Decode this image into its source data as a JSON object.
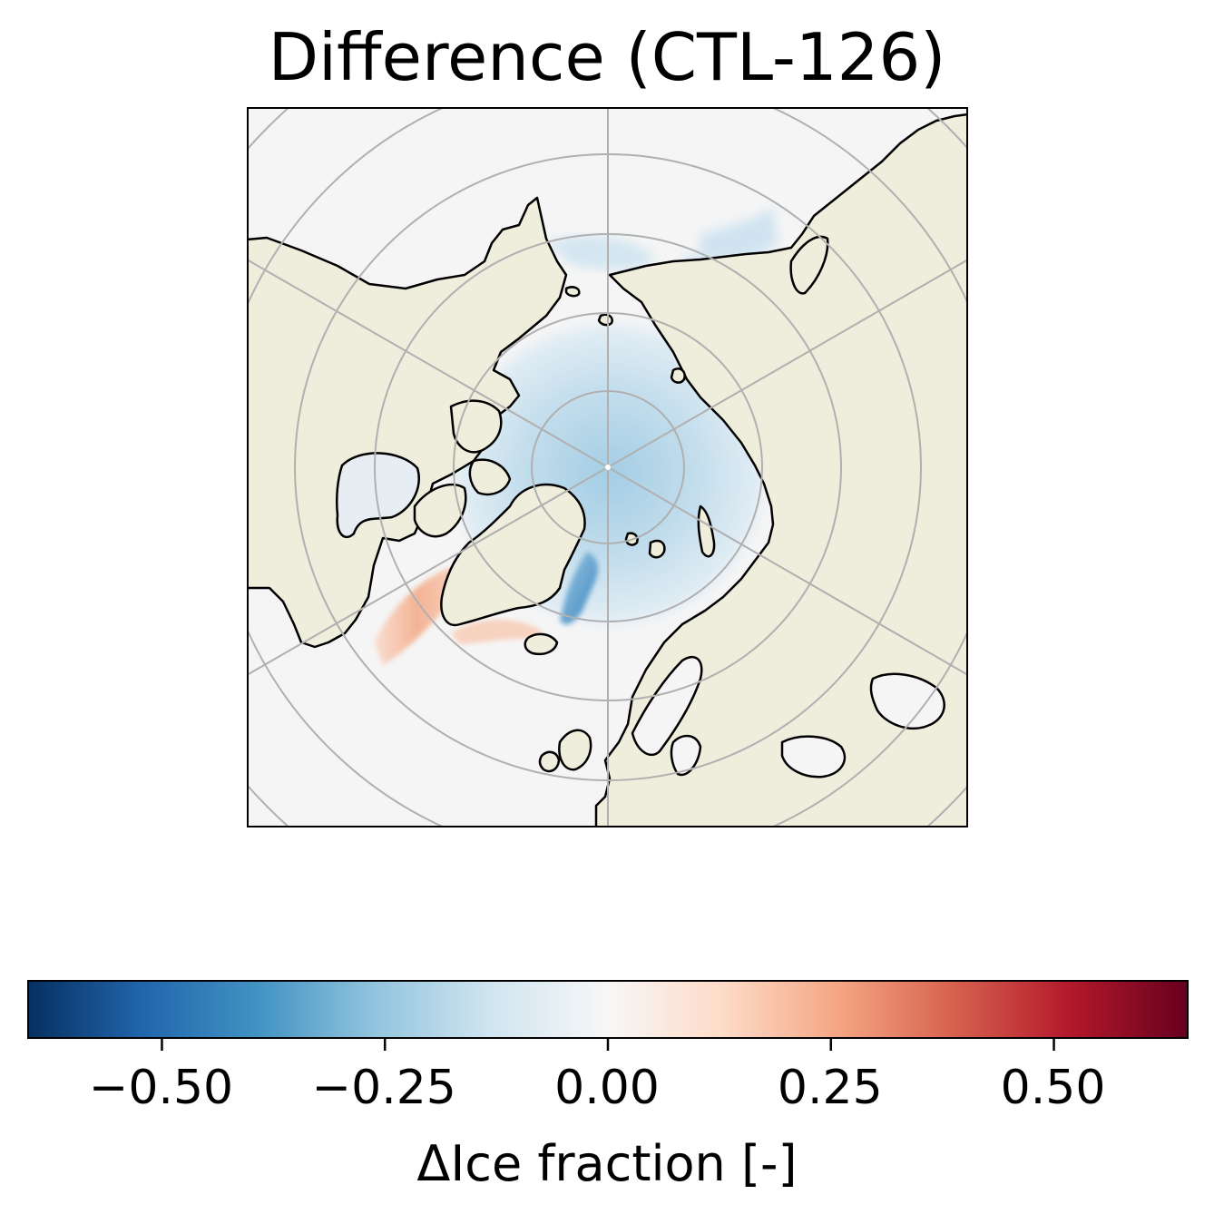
{
  "title": "Difference (CTL-126)",
  "map": {
    "projection": "north-polar-stereographic",
    "colors": {
      "ocean": "#f5f5f5",
      "land": "#efeddb",
      "coast": "#000000",
      "grid": "#b0b0b0"
    },
    "features": [
      "central-arctic-decrease",
      "east-greenland-strong-decrease",
      "bering-strait-decrease",
      "hudson-bay-decrease",
      "labrador-sea-increase",
      "south-greenland-increase"
    ]
  },
  "colorbar": {
    "colormap": "RdBu_r",
    "range": [
      -0.65,
      0.65
    ],
    "ticks": [
      -0.5,
      -0.25,
      0.0,
      0.25,
      0.5
    ],
    "tick_labels": [
      "−0.50",
      "−0.25",
      "0.00",
      "0.25",
      "0.50"
    ],
    "label": "ΔIce fraction [-]"
  }
}
